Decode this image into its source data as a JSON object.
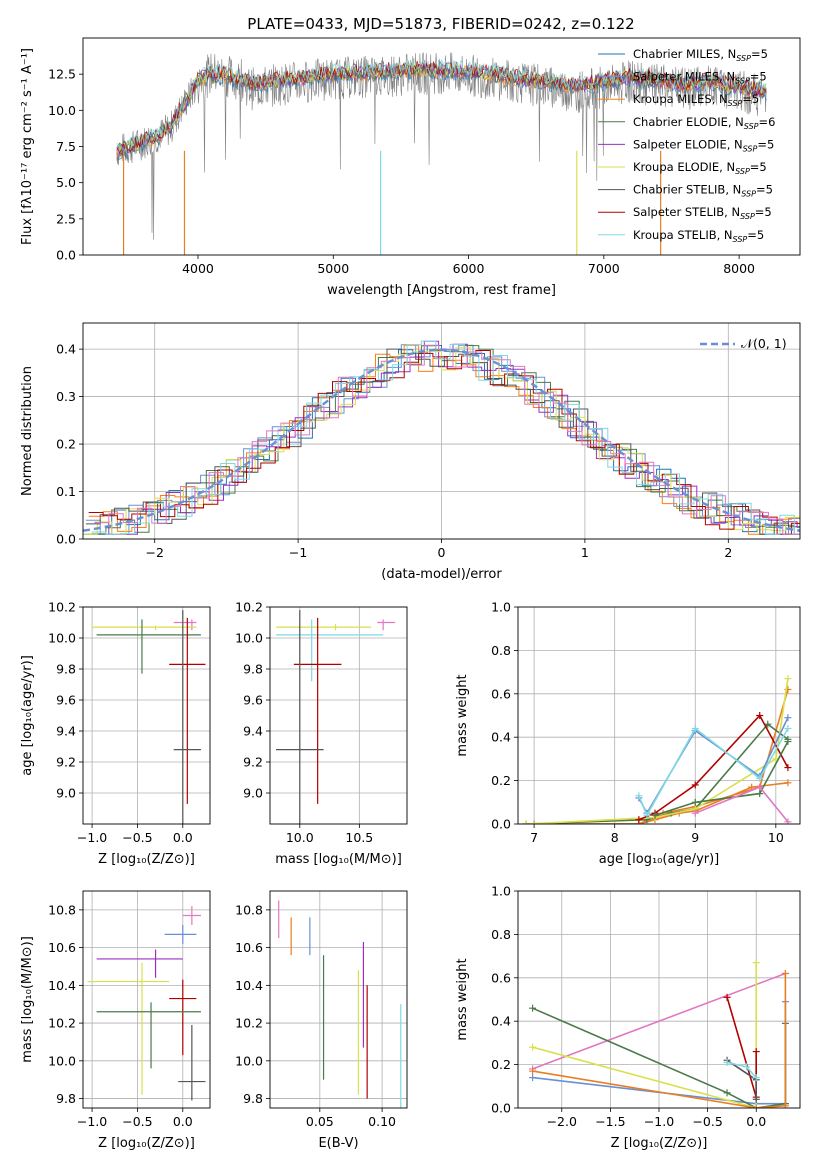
{
  "figure_title": "PLATE=0433, MJD=51873, FIBERID=0242, z=0.122",
  "model_colors": [
    "#1f77b4",
    "#6a8fd6",
    "#ff7f0e",
    "#4a7a4a",
    "#9c2fc2",
    "#d9e04a",
    "#555555",
    "#b20000",
    "#7fd9e3"
  ],
  "extra_colors": [
    "#e377c2",
    "#e87e20",
    "#5c8a5c",
    "#ccdd33",
    "#8c8c8c"
  ],
  "chart_data": [
    {
      "id": "spectrum",
      "type": "line",
      "title": "PLATE=0433, MJD=51873, FIBERID=0242, z=0.122",
      "xlabel": "wavelength [Angstrom, rest frame]",
      "ylabel": "Flux [fλ10⁻¹⁷ erg cm⁻² s⁻¹ A⁻¹]",
      "xlim": [
        3150,
        8450
      ],
      "ylim": [
        0,
        15
      ],
      "xticks": [
        4000,
        5000,
        6000,
        7000,
        8000
      ],
      "yticks": [
        0.0,
        2.5,
        5.0,
        7.5,
        10.0,
        12.5
      ],
      "grid": false,
      "legend_position": "right",
      "legend": [
        "Chabrier MILES, N_SSP=5",
        "Salpeter MILES, N_SSP=5",
        "Kroupa MILES, N_SSP=5",
        "Chabrier ELODIE, N_SSP=6",
        "Salpeter ELODIE, N_SSP=5",
        "Kroupa ELODIE, N_SSP=5",
        "Chabrier STELIB, N_SSP=5",
        "Salpeter STELIB, N_SSP=5",
        "Kroupa STELIB, N_SSP=5"
      ],
      "data_x": [
        3400,
        3500,
        3600,
        3700,
        3800,
        3900,
        4000,
        4100,
        4200,
        4300,
        4400,
        4600,
        4800,
        5000,
        5200,
        5400,
        5600,
        5800,
        6000,
        6200,
        6400,
        6600,
        6800,
        7000,
        7200,
        7400,
        7600,
        7800,
        8000,
        8200
      ],
      "data_y": [
        7.2,
        7.4,
        7.8,
        8.2,
        8.8,
        10.5,
        11.8,
        12.6,
        12.4,
        12.2,
        11.5,
        11.8,
        12.0,
        12.2,
        12.3,
        12.4,
        12.5,
        12.6,
        12.4,
        12.2,
        11.9,
        11.6,
        11.3,
        11.6,
        12.0,
        11.7,
        11.5,
        11.7,
        11.3,
        11.0
      ],
      "model_x": [
        3400,
        3500,
        3600,
        3700,
        3800,
        3900,
        4000,
        4100,
        4200,
        4300,
        4400,
        4600,
        4800,
        5000,
        5200,
        5400,
        5600,
        5800,
        6000,
        6200,
        6400,
        6600,
        6800,
        7000,
        7200,
        7400,
        7600,
        7800,
        8000,
        8200
      ],
      "model_y": [
        7.0,
        7.3,
        7.7,
        8.0,
        8.7,
        10.3,
        11.9,
        12.3,
        12.2,
        12.0,
        11.6,
        11.9,
        12.1,
        12.3,
        12.4,
        12.5,
        12.6,
        12.6,
        12.5,
        12.3,
        12.0,
        11.8,
        11.5,
        11.8,
        12.1,
        11.9,
        11.6,
        11.8,
        11.4,
        11.1
      ]
    },
    {
      "id": "residuals",
      "type": "line",
      "xlabel": "(data-model)/error",
      "ylabel": "Normed distribution",
      "xlim": [
        -2.5,
        2.5
      ],
      "ylim": [
        0,
        0.455
      ],
      "xticks": [
        -2,
        -1,
        0,
        1,
        2
      ],
      "yticks": [
        0.0,
        0.1,
        0.2,
        0.3,
        0.4
      ],
      "grid": true,
      "legend_position": "top-right",
      "legend": [
        "𝒩(0, 1)"
      ]
    },
    {
      "id": "age-vs-Z",
      "type": "scatter",
      "xlabel": "Z [log₁₀(Z/Z⊙)]",
      "ylabel": "age  [log₁₀(age/yr)]",
      "xlim": [
        -1.1,
        0.3
      ],
      "ylim": [
        8.8,
        10.2
      ],
      "xticks": [
        -1.0,
        -0.5,
        0.0
      ],
      "yticks": [
        9.0,
        9.2,
        9.4,
        9.6,
        9.8,
        10.0,
        10.2
      ],
      "grid": true,
      "points": [
        {
          "x": 0.1,
          "y": 10.1,
          "xerr": [
            0.2,
            0.05
          ],
          "yerr": [
            0.05,
            0.02
          ]
        },
        {
          "x": -0.3,
          "y": 10.07,
          "xerr": [
            0.7,
            0.45
          ],
          "yerr": [
            0.02,
            0.01
          ]
        },
        {
          "x": -0.45,
          "y": 10.02,
          "xerr": [
            0.5,
            0.65
          ],
          "yerr": [
            0.25,
            0.1
          ]
        },
        {
          "x": 0.05,
          "y": 9.83,
          "xerr": [
            0.2,
            0.2
          ],
          "yerr": [
            0.9,
            0.3
          ]
        },
        {
          "x": 0.0,
          "y": 9.28,
          "xerr": [
            0.1,
            0.2
          ],
          "yerr": [
            0.5,
            0.9
          ]
        }
      ]
    },
    {
      "id": "age-vs-mass",
      "type": "scatter",
      "xlabel": "mass [log₁₀(M/M⊙)]",
      "ylabel": "",
      "xlim": [
        9.75,
        10.9
      ],
      "ylim": [
        8.8,
        10.2
      ],
      "xticks": [
        10.0,
        10.5
      ],
      "yticks": [
        9.0,
        9.2,
        9.4,
        9.6,
        9.8,
        10.0,
        10.2
      ],
      "grid": true,
      "points": [
        {
          "x": 10.7,
          "y": 10.1,
          "xerr": [
            0.05,
            0.1
          ],
          "yerr": [
            0.05,
            0.02
          ]
        },
        {
          "x": 10.3,
          "y": 10.07,
          "xerr": [
            0.5,
            0.3
          ],
          "yerr": [
            0.02,
            0.02
          ]
        },
        {
          "x": 10.1,
          "y": 10.02,
          "xerr": [
            0.3,
            0.6
          ],
          "yerr": [
            0.3,
            0.1
          ]
        },
        {
          "x": 10.15,
          "y": 9.83,
          "xerr": [
            0.2,
            0.2
          ],
          "yerr": [
            0.9,
            0.3
          ]
        },
        {
          "x": 10.0,
          "y": 9.28,
          "xerr": [
            0.2,
            0.2
          ],
          "yerr": [
            0.5,
            0.9
          ]
        }
      ]
    },
    {
      "id": "mass-weight-vs-age",
      "type": "line",
      "xlabel": "age  [log₁₀(age/yr)]",
      "ylabel": "mass weight",
      "xlim": [
        6.8,
        10.3
      ],
      "ylim": [
        0,
        1
      ],
      "xticks": [
        7,
        8,
        9,
        10
      ],
      "yticks": [
        0.0,
        0.2,
        0.4,
        0.6,
        0.8,
        1.0
      ],
      "grid": true,
      "series": [
        {
          "x": [
            6.9,
            8.3,
            8.6,
            9.0,
            9.8,
            10.15
          ],
          "y": [
            0.0,
            0.0,
            0.05,
            0.08,
            0.17,
            0.62
          ]
        },
        {
          "x": [
            7.0,
            8.3,
            8.5,
            8.8,
            9.0,
            9.7,
            10.15
          ],
          "y": [
            0.0,
            0.0,
            0.02,
            0.05,
            0.06,
            0.17,
            0.19
          ]
        },
        {
          "x": [
            6.9,
            8.4,
            8.7,
            9.0,
            9.9,
            10.15
          ],
          "y": [
            0.0,
            0.02,
            0.05,
            0.07,
            0.46,
            0.39
          ]
        },
        {
          "x": [
            6.9,
            8.5,
            9.0,
            10.0,
            10.15
          ],
          "y": [
            0.0,
            0.03,
            0.07,
            0.3,
            0.67
          ]
        },
        {
          "x": [
            8.3,
            8.5,
            9.0,
            9.8,
            10.15
          ],
          "y": [
            0.02,
            0.05,
            0.18,
            0.5,
            0.26
          ]
        },
        {
          "x": [
            8.3,
            8.4,
            9.0,
            9.8,
            10.15
          ],
          "y": [
            0.12,
            0.05,
            0.43,
            0.22,
            0.49
          ]
        },
        {
          "x": [
            8.3,
            8.4,
            9.0,
            9.8,
            10.15
          ],
          "y": [
            0.13,
            0.04,
            0.44,
            0.21,
            0.44
          ]
        },
        {
          "x": [
            8.5,
            9.0,
            9.8,
            10.15
          ],
          "y": [
            0.04,
            0.1,
            0.14,
            0.38
          ]
        },
        {
          "x": [
            9.0,
            9.8,
            10.15
          ],
          "y": [
            0.05,
            0.17,
            0.01
          ]
        }
      ]
    },
    {
      "id": "mass-vs-Z",
      "type": "scatter",
      "xlabel": "Z [log₁₀(Z/Z⊙)]",
      "ylabel": "mass [log₁₀(M/M⊙)]",
      "xlim": [
        -1.1,
        0.3
      ],
      "ylim": [
        9.75,
        10.9
      ],
      "xticks": [
        -1.0,
        -0.5,
        0.0
      ],
      "yticks": [
        9.8,
        10.0,
        10.2,
        10.4,
        10.6,
        10.8
      ],
      "grid": true,
      "points": [
        {
          "x": 0.1,
          "y": 10.77,
          "xerr": [
            0.1,
            0.1
          ],
          "yerr": [
            0.05,
            0.05
          ]
        },
        {
          "x": 0.0,
          "y": 10.67,
          "xerr": [
            0.2,
            0.15
          ],
          "yerr": [
            0.05,
            0.05
          ]
        },
        {
          "x": -0.3,
          "y": 10.54,
          "xerr": [
            0.65,
            0.3
          ],
          "yerr": [
            0.1,
            0.05
          ]
        },
        {
          "x": -0.45,
          "y": 10.42,
          "xerr": [
            0.6,
            0.3
          ],
          "yerr": [
            0.6,
            0.1
          ]
        },
        {
          "x": 0.0,
          "y": 10.33,
          "xerr": [
            0.15,
            0.15
          ],
          "yerr": [
            0.3,
            0.1
          ]
        },
        {
          "x": -0.35,
          "y": 10.26,
          "xerr": [
            0.6,
            0.55
          ],
          "yerr": [
            0.3,
            0.05
          ]
        },
        {
          "x": 0.1,
          "y": 9.89,
          "xerr": [
            0.15,
            0.15
          ],
          "yerr": [
            0.1,
            0.3
          ]
        }
      ]
    },
    {
      "id": "mass-vs-ebv",
      "type": "scatter",
      "xlabel": "E(B-V)",
      "ylabel": "",
      "xlim": [
        0.01,
        0.12
      ],
      "ylim": [
        9.75,
        10.9
      ],
      "xticks": [
        0.05,
        0.1
      ],
      "yticks": [
        9.8,
        10.0,
        10.2,
        10.4,
        10.6,
        10.8
      ],
      "grid": true,
      "points": [
        {
          "x": 0.017,
          "y": 10.75,
          "yerr": [
            0.1,
            0.1
          ]
        },
        {
          "x": 0.027,
          "y": 10.66,
          "yerr": [
            0.1,
            0.1
          ]
        },
        {
          "x": 0.042,
          "y": 10.66,
          "yerr": [
            0.1,
            0.1
          ]
        },
        {
          "x": 0.053,
          "y": 10.23,
          "yerr": [
            0.33,
            0.33
          ]
        },
        {
          "x": 0.081,
          "y": 10.15,
          "yerr": [
            0.33,
            0.33
          ]
        },
        {
          "x": 0.085,
          "y": 10.35,
          "yerr": [
            0.28,
            0.28
          ]
        },
        {
          "x": 0.088,
          "y": 10.1,
          "yerr": [
            0.3,
            0.3
          ]
        },
        {
          "x": 0.115,
          "y": 10.0,
          "yerr": [
            0.3,
            0.3
          ]
        }
      ]
    },
    {
      "id": "mass-weight-vs-Z",
      "type": "line",
      "xlabel": "Z [log₁₀(Z/Z⊙)]",
      "ylabel": "mass weight",
      "xlim": [
        -2.45,
        0.45
      ],
      "ylim": [
        0,
        1
      ],
      "xticks": [
        -2.0,
        -1.5,
        -1.0,
        -0.5,
        0.0
      ],
      "yticks": [
        0.0,
        0.2,
        0.4,
        0.6,
        0.8,
        1.0
      ],
      "grid": true,
      "series": [
        {
          "x": [
            -2.3,
            0.3
          ],
          "y": [
            0.18,
            0.62
          ]
        },
        {
          "x": [
            -2.3,
            0.0,
            0.3,
            0.3
          ],
          "y": [
            0.14,
            0.02,
            0.02,
            0.49
          ]
        },
        {
          "x": [
            -2.3,
            -0.3,
            0.0,
            0.3,
            0.3
          ],
          "y": [
            0.46,
            0.07,
            0.0,
            0.02,
            0.39
          ]
        },
        {
          "x": [
            -2.3,
            0.0,
            0.0
          ],
          "y": [
            0.28,
            0.0,
            0.67
          ]
        },
        {
          "x": [
            -0.3,
            0.0,
            0.0
          ],
          "y": [
            0.51,
            0.05,
            0.26
          ]
        },
        {
          "x": [
            -0.3,
            0.0,
            0.0
          ],
          "y": [
            0.22,
            0.13,
            0.04
          ]
        },
        {
          "x": [
            -2.3,
            0.0,
            0.3,
            0.3
          ],
          "y": [
            0.17,
            0.0,
            0.01,
            0.62
          ]
        },
        {
          "x": [
            -0.3,
            -0.1,
            0.0
          ],
          "y": [
            0.21,
            0.19,
            0.14
          ]
        }
      ]
    }
  ]
}
